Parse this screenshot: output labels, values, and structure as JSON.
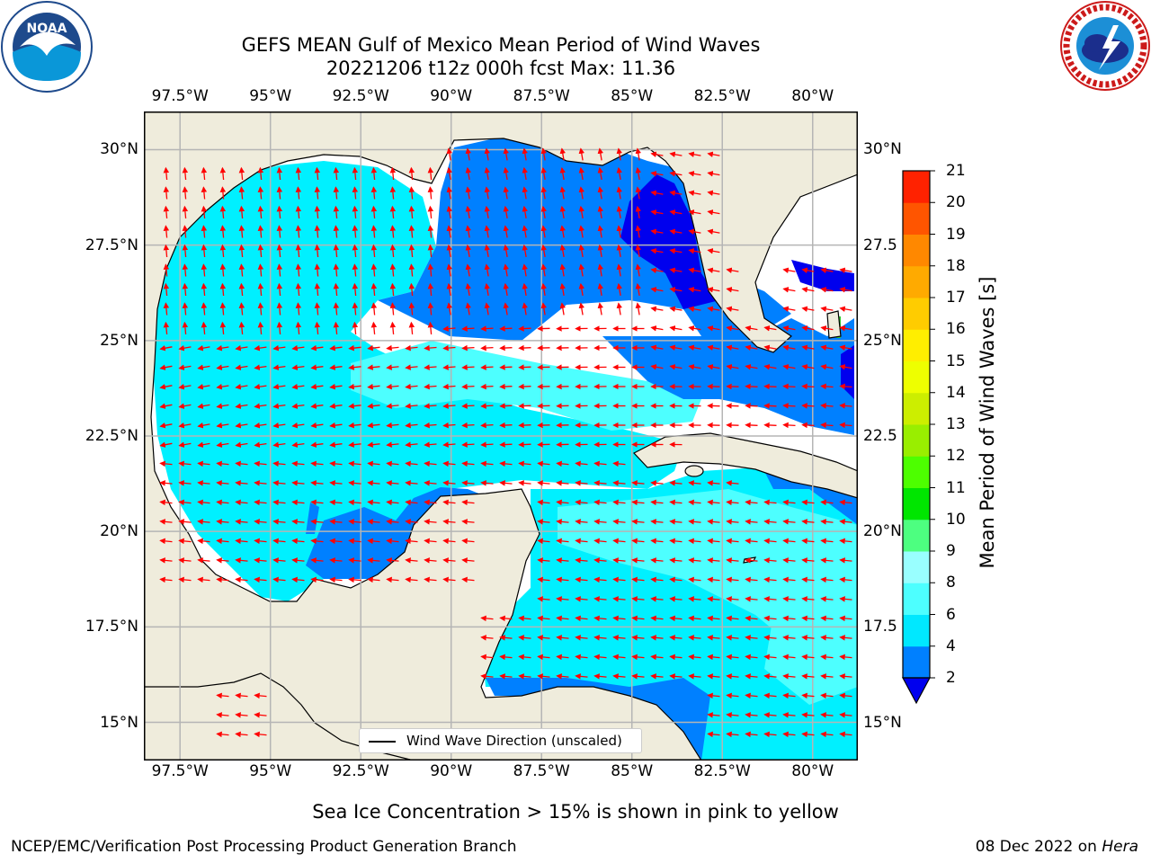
{
  "header": {
    "title_line1": "GEFS MEAN Gulf of Mexico Mean Period of Wind Waves",
    "title_line2": "20221206 t12z 000h fcst   Max: 11.36"
  },
  "logos": {
    "left": {
      "icon": "noaa-logo",
      "text": "NOAA",
      "ring_text": "NATIONAL OCEANIC AND ATMOSPHERIC ADMINISTRATION · U.S. DEPARTMENT OF COMMERCE"
    },
    "right": {
      "icon": "nws-logo",
      "ring_text": "NATIONAL WEATHER SERVICE"
    }
  },
  "map": {
    "lon_labels": [
      "97.5°W",
      "95°W",
      "92.5°W",
      "90°W",
      "87.5°W",
      "85°W",
      "82.5°W",
      "80°W"
    ],
    "lat_labels": [
      "30°N",
      "27.5°N",
      "25°N",
      "22.5°N",
      "20°N",
      "17.5°N",
      "15°N"
    ],
    "right_lat_labels": [
      "30°N",
      "27.5",
      "25°N",
      "22.5",
      "20°N",
      "17.5",
      "15°N"
    ],
    "lon_values": [
      -97.5,
      -95,
      -92.5,
      -90,
      -87.5,
      -85,
      -82.5,
      -80
    ],
    "lat_values": [
      30,
      27.5,
      25,
      22.5,
      20,
      17.5,
      15
    ],
    "extent": {
      "lon_min": -98.5,
      "lon_max": -78.75,
      "lat_min": 14.0,
      "lat_max": 31.0
    },
    "colors": {
      "land": "#efecdc",
      "coast": "#000000",
      "grid": "#b5b5b5",
      "arrow": "#ff0000",
      "no_data": "#ffffff"
    },
    "legend_text": "Wind Wave Direction (unscaled)"
  },
  "colorbar": {
    "label": "Mean Period of Wind Waves [s]",
    "ticks": [
      "2",
      "4",
      "6",
      "8",
      "9",
      "10",
      "11",
      "12",
      "13",
      "14",
      "15",
      "16",
      "17",
      "18",
      "19",
      "20",
      "21"
    ],
    "colors": [
      "#0080ff",
      "#00e8ff",
      "#4dffff",
      "#99ffff",
      "#4dff80",
      "#00e600",
      "#4dff00",
      "#99ee00",
      "#ccee00",
      "#eeff00",
      "#ffee00",
      "#ffcc00",
      "#ffaa00",
      "#ff8800",
      "#ff5500",
      "#ff2200"
    ],
    "under_color": "#0000ee"
  },
  "notes": {
    "sea_ice": "Sea Ice Concentration > 15% is shown in pink to yellow"
  },
  "footer": {
    "left": "NCEP/EMC/Verification Post Processing Product Generation Branch",
    "right_prefix": "08 Dec 2022 on ",
    "right_host": "Hera"
  }
}
